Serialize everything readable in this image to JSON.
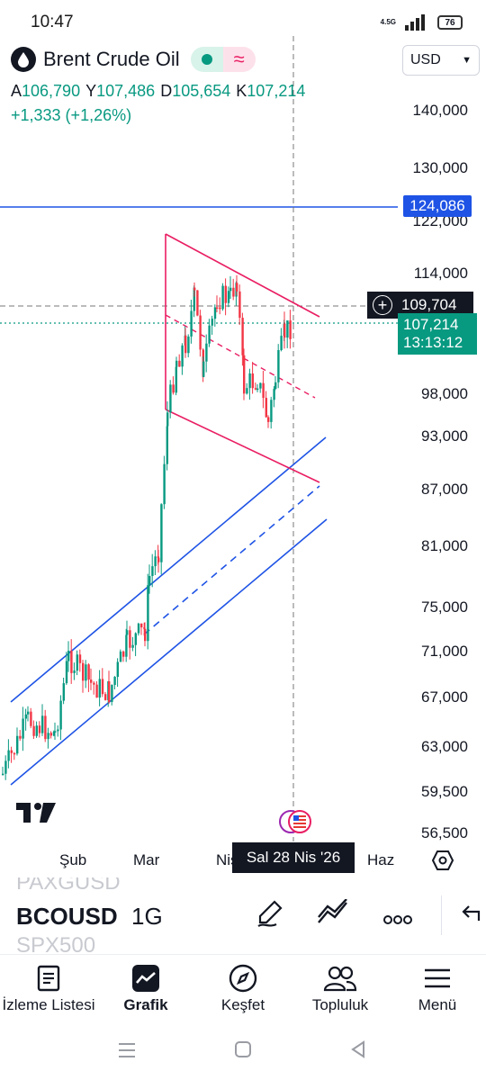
{
  "status": {
    "time": "10:47",
    "network": "4.5G",
    "battery": "76"
  },
  "header": {
    "title": "Brent Crude Oil",
    "currency": "USD",
    "ohlc": [
      {
        "label": "A",
        "value": "106,790"
      },
      {
        "label": "Y",
        "value": "107,486"
      },
      {
        "label": "D",
        "value": "105,654"
      },
      {
        "label": "K",
        "value": "107,214"
      }
    ],
    "change": "+1,333 (+1,26%)"
  },
  "price_axis": [
    "140,000",
    "130,000",
    "122,000",
    "114,000",
    "98,000",
    "93,000",
    "87,000",
    "81,000",
    "75,000",
    "71,000",
    "67,000",
    "63,000",
    "59,500",
    "56,500"
  ],
  "tags": {
    "horizontal_line": "124,086",
    "crosshair": "109,704",
    "last_price": "107,214",
    "countdown": "13:13:12",
    "crosshair_date": "Sal 28 Nis '26"
  },
  "time_axis": [
    "Şub",
    "Mar",
    "Nis",
    "Haz"
  ],
  "colors": {
    "up": "#089981",
    "down": "#f23645",
    "channel": "#1e53e5",
    "pattern": "#e91e63",
    "accent": "#131722"
  },
  "toolbar": {
    "symbol_above": "PAXGUSD",
    "symbol": "BCOUSD",
    "symbol_below": "SPX500",
    "interval": "1G"
  },
  "nav": [
    {
      "label": "İzleme Listesi",
      "icon": "list-icon"
    },
    {
      "label": "Grafik",
      "icon": "chart-icon"
    },
    {
      "label": "Keşfet",
      "icon": "compass-icon"
    },
    {
      "label": "Topluluk",
      "icon": "people-icon"
    },
    {
      "label": "Menü",
      "icon": "menu-icon"
    }
  ]
}
